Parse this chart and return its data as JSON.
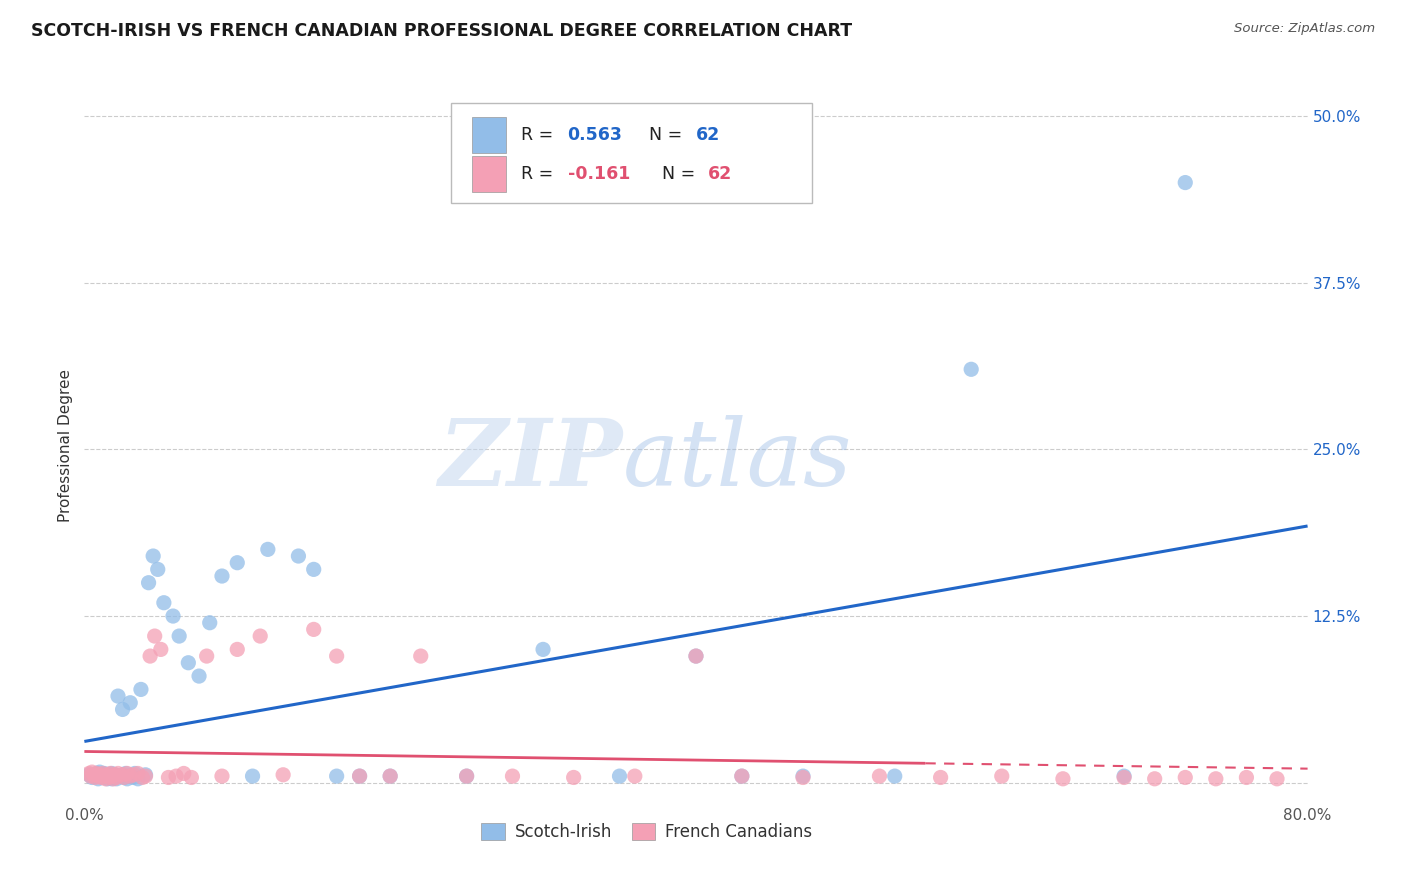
{
  "title": "SCOTCH-IRISH VS FRENCH CANADIAN PROFESSIONAL DEGREE CORRELATION CHART",
  "source": "Source: ZipAtlas.com",
  "ylabel": "Professional Degree",
  "watermark_zip": "ZIP",
  "watermark_atlas": "atlas",
  "xlim": [
    0.0,
    0.8
  ],
  "ylim": [
    -0.015,
    0.52
  ],
  "ytick_positions": [
    0.0,
    0.125,
    0.25,
    0.375,
    0.5
  ],
  "ytick_labels": [
    "",
    "12.5%",
    "25.0%",
    "37.5%",
    "50.0%"
  ],
  "scotch_irish_color": "#92BDE8",
  "french_canadian_color": "#F4A0B5",
  "scotch_irish_line_color": "#2166C8",
  "french_canadian_line_color": "#E05070",
  "R_scotch": 0.563,
  "N_scotch": 62,
  "R_french": -0.161,
  "N_french": 62,
  "background_color": "#ffffff",
  "grid_color": "#cccccc",
  "legend_label_scotch": "Scotch-Irish",
  "legend_label_french": "French Canadians",
  "scotch_irish_x": [
    0.003,
    0.005,
    0.007,
    0.008,
    0.009,
    0.01,
    0.01,
    0.011,
    0.012,
    0.013,
    0.015,
    0.015,
    0.016,
    0.017,
    0.018,
    0.018,
    0.019,
    0.02,
    0.02,
    0.021,
    0.022,
    0.023,
    0.025,
    0.025,
    0.026,
    0.027,
    0.028,
    0.03,
    0.03,
    0.032,
    0.033,
    0.035,
    0.037,
    0.04,
    0.042,
    0.045,
    0.048,
    0.052,
    0.058,
    0.062,
    0.068,
    0.075,
    0.082,
    0.09,
    0.1,
    0.11,
    0.12,
    0.14,
    0.15,
    0.165,
    0.18,
    0.2,
    0.25,
    0.3,
    0.35,
    0.4,
    0.43,
    0.47,
    0.53,
    0.58,
    0.68,
    0.72
  ],
  "scotch_irish_y": [
    0.006,
    0.004,
    0.005,
    0.007,
    0.003,
    0.005,
    0.008,
    0.006,
    0.004,
    0.007,
    0.005,
    0.003,
    0.006,
    0.004,
    0.007,
    0.003,
    0.005,
    0.006,
    0.004,
    0.003,
    0.065,
    0.005,
    0.006,
    0.055,
    0.004,
    0.007,
    0.003,
    0.005,
    0.06,
    0.004,
    0.007,
    0.003,
    0.07,
    0.006,
    0.15,
    0.17,
    0.16,
    0.135,
    0.125,
    0.11,
    0.09,
    0.08,
    0.12,
    0.155,
    0.165,
    0.005,
    0.175,
    0.17,
    0.16,
    0.005,
    0.005,
    0.005,
    0.005,
    0.1,
    0.005,
    0.095,
    0.005,
    0.005,
    0.005,
    0.31,
    0.005,
    0.45
  ],
  "french_canadian_x": [
    0.003,
    0.004,
    0.005,
    0.006,
    0.007,
    0.008,
    0.009,
    0.01,
    0.011,
    0.012,
    0.013,
    0.014,
    0.015,
    0.016,
    0.017,
    0.018,
    0.019,
    0.02,
    0.021,
    0.022,
    0.025,
    0.026,
    0.028,
    0.03,
    0.032,
    0.035,
    0.038,
    0.04,
    0.043,
    0.046,
    0.05,
    0.055,
    0.06,
    0.065,
    0.07,
    0.08,
    0.09,
    0.1,
    0.115,
    0.13,
    0.15,
    0.165,
    0.18,
    0.2,
    0.22,
    0.25,
    0.28,
    0.32,
    0.36,
    0.4,
    0.43,
    0.47,
    0.52,
    0.56,
    0.6,
    0.64,
    0.68,
    0.7,
    0.72,
    0.74,
    0.76,
    0.78
  ],
  "french_canadian_y": [
    0.007,
    0.005,
    0.008,
    0.006,
    0.004,
    0.007,
    0.005,
    0.006,
    0.004,
    0.007,
    0.005,
    0.003,
    0.006,
    0.004,
    0.007,
    0.005,
    0.003,
    0.006,
    0.004,
    0.007,
    0.006,
    0.004,
    0.007,
    0.005,
    0.006,
    0.007,
    0.004,
    0.005,
    0.095,
    0.11,
    0.1,
    0.004,
    0.005,
    0.007,
    0.004,
    0.095,
    0.005,
    0.1,
    0.11,
    0.006,
    0.115,
    0.095,
    0.005,
    0.005,
    0.095,
    0.005,
    0.005,
    0.004,
    0.005,
    0.095,
    0.005,
    0.004,
    0.005,
    0.004,
    0.005,
    0.003,
    0.004,
    0.003,
    0.004,
    0.003,
    0.004,
    0.003
  ]
}
